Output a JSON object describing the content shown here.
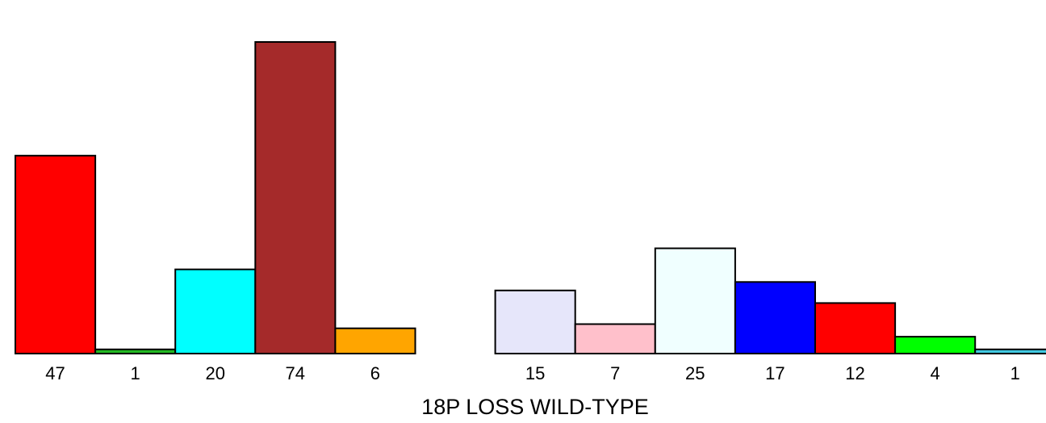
{
  "chart_data": {
    "type": "bar",
    "title": "",
    "xlabel": "18P LOSS WILD-TYPE",
    "ylabel": "",
    "ylim": [
      0,
      74
    ],
    "grid": false,
    "legend": "none",
    "groups": [
      {
        "bars": [
          {
            "value": 47,
            "label": "47",
            "color": "#ff0000"
          },
          {
            "value": 1,
            "label": "1",
            "color": "#22b822"
          },
          {
            "value": 20,
            "label": "20",
            "color": "#00ffff"
          },
          {
            "value": 74,
            "label": "74",
            "color": "#a52a2a"
          },
          {
            "value": 6,
            "label": "6",
            "color": "#ffa500"
          }
        ]
      },
      {
        "bars": [
          {
            "value": 15,
            "label": "15",
            "color": "#e6e6fa"
          },
          {
            "value": 7,
            "label": "7",
            "color": "#ffc0cb"
          },
          {
            "value": 25,
            "label": "25",
            "color": "#f0ffff"
          },
          {
            "value": 17,
            "label": "17",
            "color": "#0000ff"
          },
          {
            "value": 12,
            "label": "12",
            "color": "#ff0000"
          },
          {
            "value": 4,
            "label": "4",
            "color": "#00ff00"
          },
          {
            "value": 1,
            "label": "1",
            "color": "#40c8e0"
          }
        ]
      }
    ]
  }
}
